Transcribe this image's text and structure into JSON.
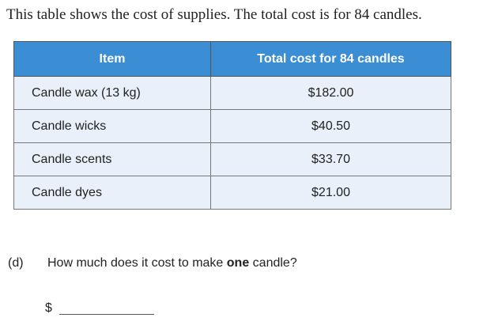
{
  "intro": "This table shows the cost of supplies. The total cost is for 84 candles.",
  "table": {
    "header": [
      "Item",
      "Total cost for 84 candles"
    ],
    "rows": [
      [
        "Candle wax (13 kg)",
        "$182.00"
      ],
      [
        "Candle wicks",
        "$40.50"
      ],
      [
        "Candle scents",
        "$33.70"
      ],
      [
        "Candle dyes",
        "$21.00"
      ]
    ]
  },
  "question": {
    "label": "(d)",
    "text_before": "How much does it cost to make ",
    "emphasis": "one",
    "text_after": " candle?"
  },
  "answer_prefix": "$"
}
